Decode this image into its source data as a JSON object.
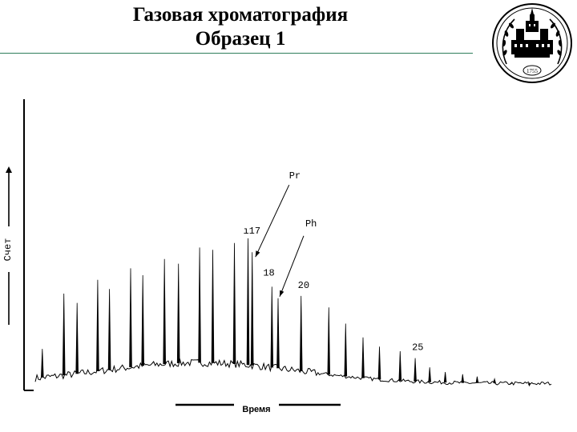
{
  "header": {
    "title": "Газовая хроматография",
    "subtitle": "Образец 1"
  },
  "logo": {
    "icon": "university-seal-icon",
    "year_text": "1755"
  },
  "chart_data": {
    "type": "line",
    "title": "Газовая хроматография",
    "subtitle": "Образец 1",
    "xlabel": "Время",
    "ylabel": "Счет",
    "grid": false,
    "legend": "none",
    "xlim": [
      0,
      100
    ],
    "ylim": [
      0,
      100
    ],
    "peaks": [
      {
        "x": 1.5,
        "y": 18
      },
      {
        "x": 6.1,
        "y": 42
      },
      {
        "x": 8.9,
        "y": 38
      },
      {
        "x": 13.3,
        "y": 48
      },
      {
        "x": 15.8,
        "y": 44
      },
      {
        "x": 20.3,
        "y": 53
      },
      {
        "x": 22.9,
        "y": 50
      },
      {
        "x": 27.5,
        "y": 57
      },
      {
        "x": 30.5,
        "y": 55
      },
      {
        "x": 35.0,
        "y": 62
      },
      {
        "x": 37.8,
        "y": 61
      },
      {
        "x": 42.4,
        "y": 64
      },
      {
        "x": 45.3,
        "y": 66
      },
      {
        "x": 46.2,
        "y": 60
      },
      {
        "x": 50.4,
        "y": 45
      },
      {
        "x": 51.7,
        "y": 40
      },
      {
        "x": 56.6,
        "y": 41
      },
      {
        "x": 62.5,
        "y": 36
      },
      {
        "x": 66.1,
        "y": 29
      },
      {
        "x": 69.8,
        "y": 23
      },
      {
        "x": 73.3,
        "y": 19
      },
      {
        "x": 77.7,
        "y": 17
      },
      {
        "x": 80.9,
        "y": 14
      },
      {
        "x": 84.0,
        "y": 10
      },
      {
        "x": 87.3,
        "y": 8
      },
      {
        "x": 91.0,
        "y": 7
      },
      {
        "x": 94.1,
        "y": 6
      },
      {
        "x": 97.8,
        "y": 5
      },
      {
        "x": 101.3,
        "y": 3
      },
      {
        "x": 105.2,
        "y": 2
      }
    ],
    "annotations": [
      {
        "text": "Pr",
        "peak_x": 46.2
      },
      {
        "text": "Ph",
        "peak_x": 51.7
      },
      {
        "text": "17",
        "peak_x": 45.3,
        "mark": "ı"
      },
      {
        "text": "18",
        "peak_x": 50.4
      },
      {
        "text": "20",
        "peak_x": 56.6
      },
      {
        "text": "25",
        "peak_x": 80.9
      }
    ]
  }
}
